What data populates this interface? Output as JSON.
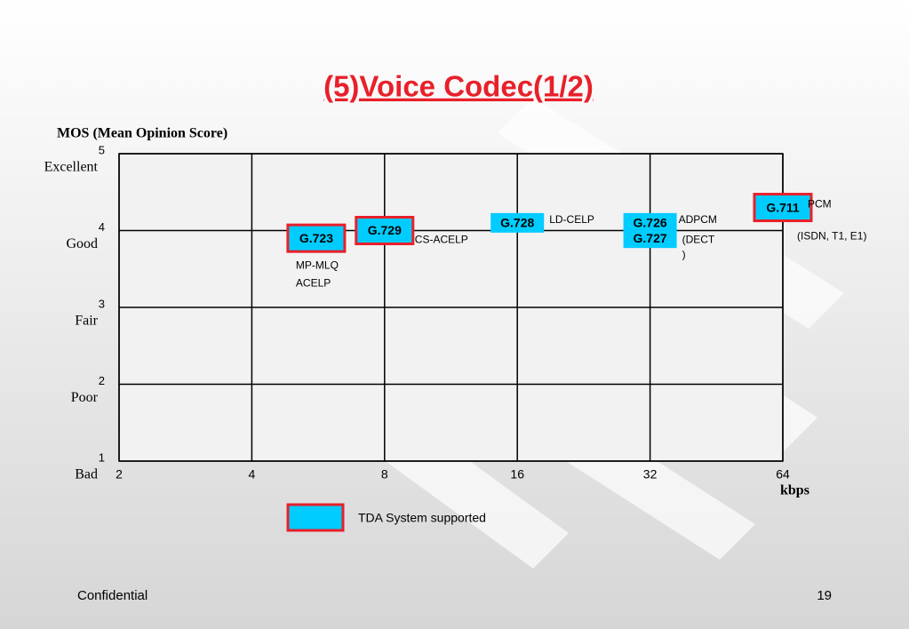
{
  "chart_data": {
    "type": "scatter",
    "title": "(5)Voice Codec(1/2)",
    "y_label": "MOS (Mean Opinion Score)",
    "x_label": "kbps",
    "log_x": true,
    "log_base": 2,
    "xlim": [
      2,
      64
    ],
    "xticks": [
      2,
      4,
      8,
      16,
      32,
      64
    ],
    "ylim": [
      1,
      5
    ],
    "yticks": [
      1,
      2,
      3,
      4,
      5
    ],
    "ytick_names": [
      "Bad",
      "Poor",
      "Fair",
      "Good",
      "Excellent"
    ],
    "grid": true,
    "fill_color": "#00ccff",
    "tda_border_color": "#e8202a",
    "points": [
      {
        "label": "G.723",
        "x": 5.6,
        "y": 3.9,
        "tda": true,
        "notes": [
          "MP-MLQ",
          "ACELP"
        ]
      },
      {
        "label": "G.729",
        "x": 8,
        "y": 4.0,
        "tda": true,
        "notes": [
          "CS-ACELP"
        ]
      },
      {
        "label": "G.728",
        "x": 16,
        "y": 4.1,
        "tda": false,
        "notes": [
          "LD-CELP"
        ]
      },
      {
        "label": "G.726",
        "x": 32,
        "y": 4.1,
        "tda": false,
        "notes": [
          "ADPCM"
        ]
      },
      {
        "label": "G.727",
        "x": 32,
        "y": 3.9,
        "tda": false,
        "notes": [
          "(DECT",
          ")"
        ]
      },
      {
        "label": "G.711",
        "x": 64,
        "y": 4.3,
        "tda": true,
        "notes": [
          "PCM",
          "(ISDN, T1, E1)"
        ]
      }
    ],
    "legend": "TDA System supported"
  },
  "footer": {
    "left": "Confidential",
    "page": "19"
  }
}
